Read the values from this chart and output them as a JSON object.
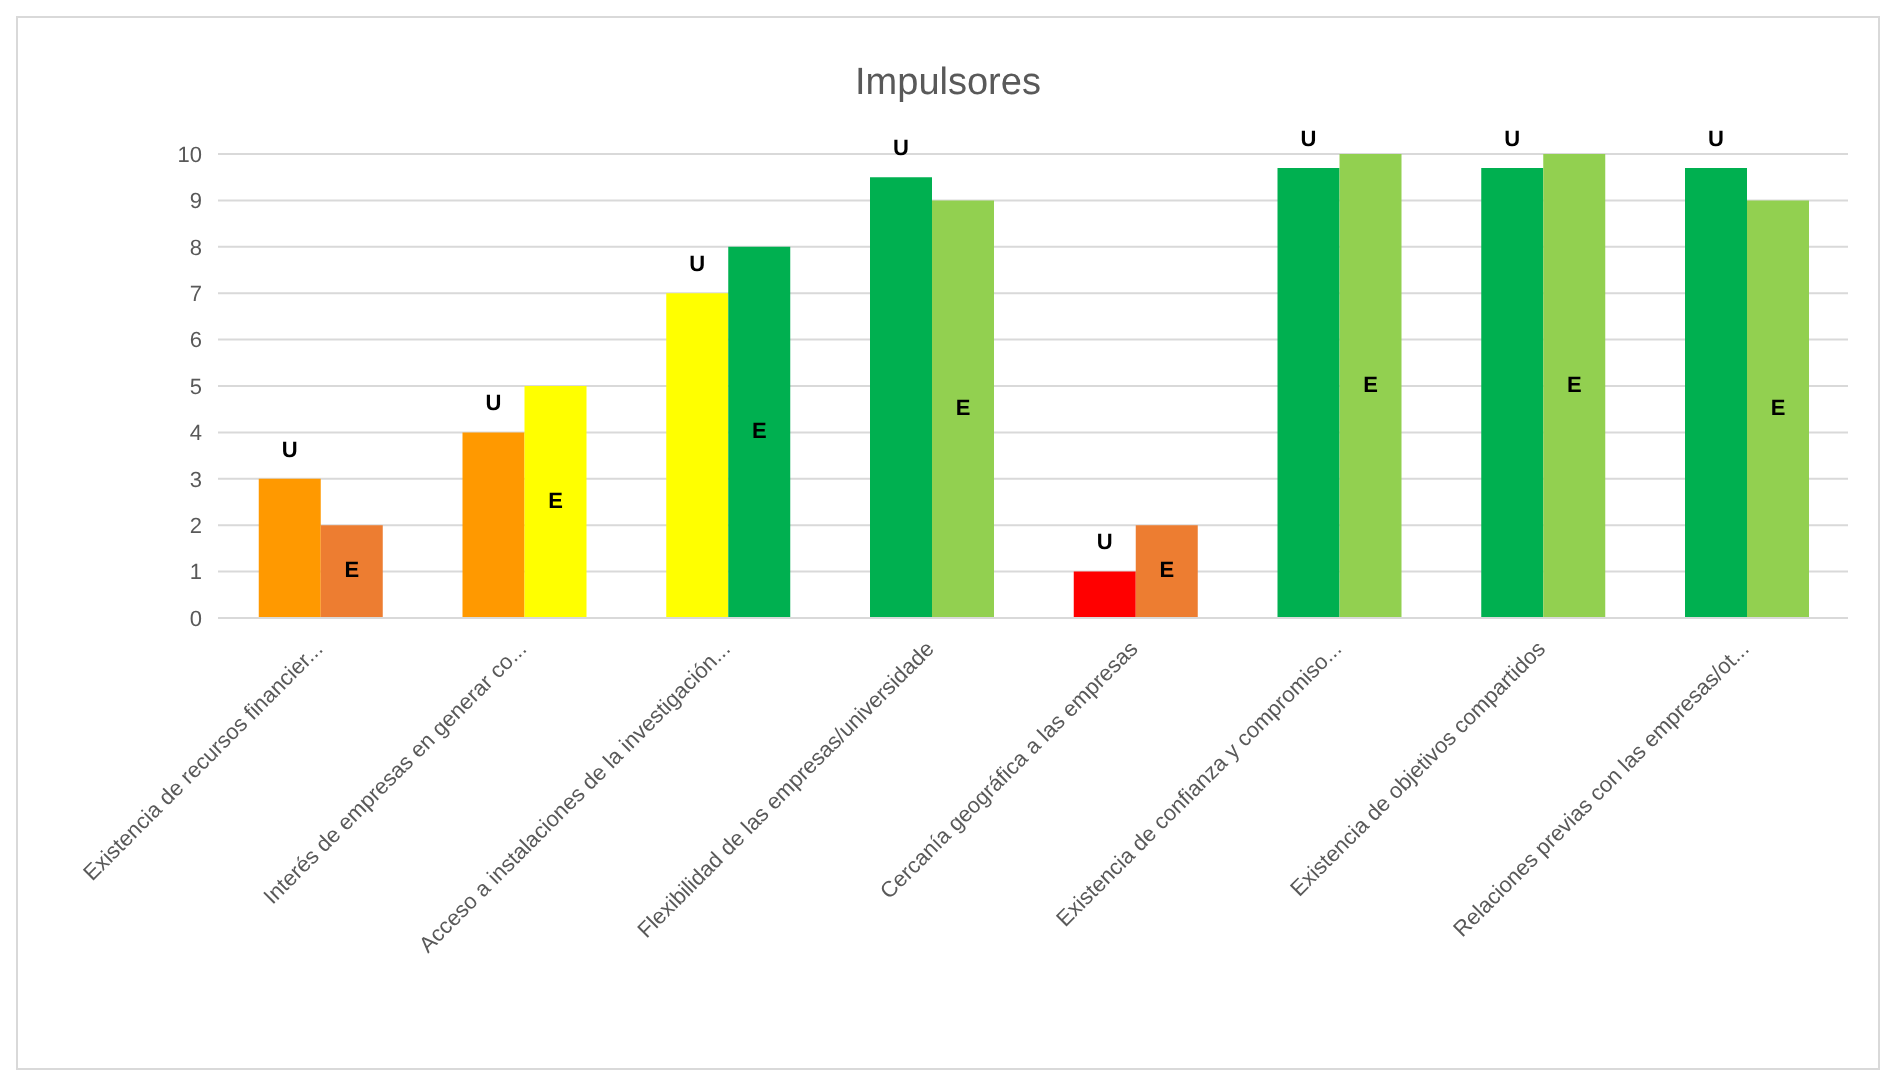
{
  "chart_data": {
    "type": "bar",
    "title": "Impulsores",
    "categories": [
      "Existencia de recursos financier...",
      "Interés de empresas en generar co...",
      "Acceso a instalaciones de la investigación...",
      "Flexibilidad de las empresas/universidade",
      "Cercanía geográfica a las empresas",
      "Existencia de confianza y compromiso...",
      "Existencia de objetivos compartidos",
      "Relaciones previas con las empresas/ot..."
    ],
    "series": [
      {
        "values": [
          3,
          4,
          7,
          9.5,
          1,
          9.7,
          9.7,
          9.7
        ],
        "colors": [
          "#ff9900",
          "#ff9900",
          "#ffff00",
          "#00b050",
          "#ff0000",
          "#00b050",
          "#00b050",
          "#00b050"
        ],
        "value_labels": [
          "U",
          "U",
          "U",
          "U",
          "U",
          "U",
          "U",
          "U"
        ]
      },
      {
        "values": [
          2,
          5,
          8,
          9,
          2,
          10,
          10,
          9
        ],
        "colors": [
          "#ed7d31",
          "#ffff00",
          "#00b050",
          "#92d050",
          "#ed7d31",
          "#92d050",
          "#92d050",
          "#92d050"
        ],
        "value_labels": [
          "E",
          "E",
          "E",
          "E",
          "E",
          "E",
          "E",
          "E"
        ]
      }
    ],
    "ylim": [
      0,
      10
    ],
    "yticks": [
      0,
      1,
      2,
      3,
      4,
      5,
      6,
      7,
      8,
      9,
      10
    ],
    "grid": "y",
    "legend": false
  }
}
